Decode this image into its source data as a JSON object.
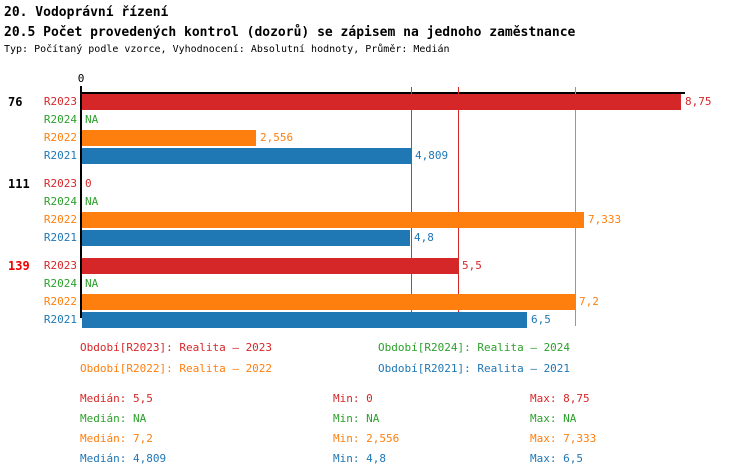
{
  "page": {
    "title": "20. Vodoprávní řízení",
    "subtitle": "20.5 Počet provedených kontrol (dozorů) se zápisem na jednoho zaměstnance",
    "meta": "Typ: Počítaný podle vzorce, Vyhodnocení: Absolutní hodnoty, Průměr: Medián"
  },
  "colors": {
    "r2023": "#d62728",
    "r2024": "#2ca02c",
    "r2022": "#ff7f0e",
    "r2021": "#1f77b4",
    "axis": "#000000",
    "highlight_group_label": "#ee0000",
    "normal_group_label": "#000000"
  },
  "chart_data": {
    "type": "bar",
    "orientation": "horizontal",
    "title": "20.5 Počet provedených kontrol (dozorů) se zápisem na jednoho zaměstnance",
    "xlabel": "",
    "ylabel": "",
    "xlim": [
      0,
      8.75
    ],
    "x_origin_tick": "0",
    "grid": false,
    "series_order": [
      "R2023",
      "R2024",
      "R2022",
      "R2021"
    ],
    "groups": [
      {
        "label": "76",
        "label_color": "#000000",
        "bars": [
          {
            "series": "R2023",
            "value": 8.75,
            "display": "8,75"
          },
          {
            "series": "R2024",
            "value": null,
            "display": "NA"
          },
          {
            "series": "R2022",
            "value": 2.556,
            "display": "2,556"
          },
          {
            "series": "R2021",
            "value": 4.809,
            "display": "4,809"
          }
        ]
      },
      {
        "label": "111",
        "label_color": "#000000",
        "bars": [
          {
            "series": "R2023",
            "value": 0,
            "display": "0"
          },
          {
            "series": "R2024",
            "value": null,
            "display": "NA"
          },
          {
            "series": "R2022",
            "value": 7.333,
            "display": "7,333"
          },
          {
            "series": "R2021",
            "value": 4.8,
            "display": "4,8"
          }
        ]
      },
      {
        "label": "139",
        "label_color": "#ee0000",
        "bars": [
          {
            "series": "R2023",
            "value": 5.5,
            "display": "5,5"
          },
          {
            "series": "R2024",
            "value": null,
            "display": "NA"
          },
          {
            "series": "R2022",
            "value": 7.2,
            "display": "7,2"
          },
          {
            "series": "R2021",
            "value": 6.5,
            "display": "6,5"
          }
        ]
      }
    ],
    "median_lines": [
      {
        "series": "R2021",
        "value": 4.809
      },
      {
        "series": "R2023",
        "value": 5.5
      },
      {
        "series": "R2022",
        "value": 7.2
      }
    ]
  },
  "legend": {
    "items": [
      {
        "series": "R2023",
        "label": "Období[R2023]: Realita – 2023"
      },
      {
        "series": "R2024",
        "label": "Období[R2024]: Realita – 2024"
      },
      {
        "series": "R2022",
        "label": "Období[R2022]: Realita – 2022"
      },
      {
        "series": "R2021",
        "label": "Období[R2021]: Realita – 2021"
      }
    ]
  },
  "stats": {
    "rows": [
      {
        "series": "R2023",
        "median": "Medián: 5,5",
        "min": "Min: 0",
        "max": "Max: 8,75"
      },
      {
        "series": "R2024",
        "median": "Medián: NA",
        "min": "Min: NA",
        "max": "Max: NA"
      },
      {
        "series": "R2022",
        "median": "Medián: 7,2",
        "min": "Min: 2,556",
        "max": "Max: 7,333"
      },
      {
        "series": "R2021",
        "median": "Medián: 4,809",
        "min": "Min: 4,8",
        "max": "Max: 6,5"
      }
    ]
  }
}
